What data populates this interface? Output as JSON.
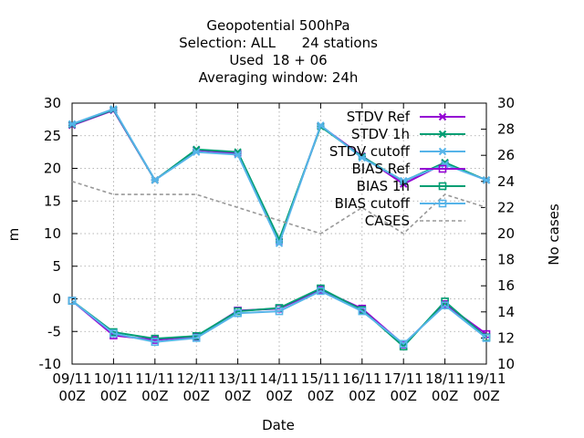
{
  "chart_data": {
    "type": "line",
    "title_lines": [
      "Geopotential 500hPa",
      "Selection: ALL      24 stations",
      "Used  18 + 06",
      "Averaging window: 24h"
    ],
    "xlabel": "Date",
    "ylabel": "m",
    "y2label": "No cases",
    "ylim": [
      -10,
      30
    ],
    "y2lim": [
      10,
      30
    ],
    "grid": true,
    "legend_position": "top-right",
    "categories": [
      "09/11\n00Z",
      "10/11\n00Z",
      "11/11\n00Z",
      "12/11\n00Z",
      "13/11\n00Z",
      "14/11\n00Z",
      "15/11\n00Z",
      "16/11\n00Z",
      "17/11\n00Z",
      "18/11\n00Z",
      "19/11\n00Z"
    ],
    "yticks": [
      -10,
      -5,
      0,
      5,
      10,
      15,
      20,
      25,
      30
    ],
    "y2ticks": [
      10,
      12,
      14,
      16,
      18,
      20,
      22,
      24,
      26,
      28,
      30
    ],
    "series": [
      {
        "name": "STDV Ref",
        "color": "#9400d3",
        "marker": "x-star",
        "axis": "y",
        "dash": false,
        "values": [
          26.6,
          28.9,
          18.2,
          22.8,
          22.3,
          8.8,
          26.5,
          21.9,
          17.6,
          20.8,
          18.2
        ]
      },
      {
        "name": "STDV 1h",
        "color": "#009e73",
        "marker": "x-star",
        "axis": "y",
        "dash": false,
        "values": [
          26.7,
          29.0,
          18.2,
          22.9,
          22.5,
          9.1,
          26.4,
          21.8,
          18.0,
          20.9,
          18.2
        ]
      },
      {
        "name": "STDV cutoff",
        "color": "#56b4e9",
        "marker": "x-star",
        "axis": "y",
        "dash": false,
        "values": [
          26.8,
          29.1,
          18.2,
          22.5,
          22.1,
          8.5,
          26.6,
          21.6,
          18.1,
          20.6,
          18.2
        ]
      },
      {
        "name": "BIAS Ref",
        "color": "#9400d3",
        "marker": "square",
        "axis": "y",
        "dash": false,
        "values": [
          -0.3,
          -5.6,
          -6.3,
          -5.8,
          -1.8,
          -1.5,
          1.4,
          -1.5,
          -7.0,
          -0.8,
          -5.4
        ]
      },
      {
        "name": "BIAS 1h",
        "color": "#009e73",
        "marker": "square",
        "axis": "y",
        "dash": false,
        "values": [
          -0.3,
          -5.1,
          -6.1,
          -5.7,
          -1.9,
          -1.4,
          1.6,
          -1.7,
          -7.3,
          -0.4,
          -5.9
        ]
      },
      {
        "name": "BIAS cutoff",
        "color": "#56b4e9",
        "marker": "square",
        "axis": "y",
        "dash": false,
        "values": [
          -0.3,
          -5.3,
          -6.6,
          -6.0,
          -2.2,
          -1.9,
          1.2,
          -1.9,
          -6.9,
          -1.0,
          -6.0
        ]
      },
      {
        "name": "CASES",
        "color": "#999999",
        "marker": "none",
        "axis": "y2",
        "dash": true,
        "values": [
          24,
          23,
          23,
          23,
          22,
          21,
          20,
          22,
          20,
          23,
          22
        ]
      }
    ]
  }
}
